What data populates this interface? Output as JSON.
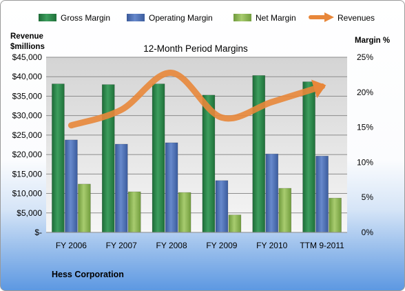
{
  "chart_data": {
    "type": "bar",
    "title": "12-Month Period Margins",
    "company": "Hess Corporation",
    "y_left_label_line1": "Revenue",
    "y_left_label_line2": "$millions",
    "y_right_label": "Margin %",
    "categories": [
      "FY 2006",
      "FY 2007",
      "FY 2008",
      "FY 2009",
      "FY 2010",
      "TTM 9-2011"
    ],
    "left_axis": {
      "min": 0,
      "max": 45000,
      "step": 5000,
      "tick_labels": [
        "$-",
        "$5,000",
        "$10,000",
        "$15,000",
        "$20,000",
        "$25,000",
        "$30,000",
        "$35,000",
        "$40,000",
        "$45,000"
      ]
    },
    "right_axis": {
      "min": 0,
      "max": 25,
      "step": 5,
      "tick_labels": [
        "0%",
        "5%",
        "10%",
        "15%",
        "20%",
        "25%"
      ]
    },
    "series": [
      {
        "name": "Gross Margin",
        "axis": "right",
        "color": "#2e8b4e",
        "values": [
          21.2,
          21.1,
          21.2,
          19.6,
          22.4,
          21.5
        ]
      },
      {
        "name": "Operating Margin",
        "axis": "right",
        "color": "#4d72b8",
        "values": [
          13.2,
          12.6,
          12.8,
          7.4,
          11.2,
          10.9
        ]
      },
      {
        "name": "Net Margin",
        "axis": "right",
        "color": "#8db354",
        "values": [
          6.9,
          5.8,
          5.7,
          2.5,
          6.3,
          4.9
        ]
      }
    ],
    "line_series": {
      "name": "Revenues",
      "axis": "left",
      "color": "#e8873a",
      "values": [
        27500,
        31500,
        41000,
        29500,
        33500,
        37500
      ]
    },
    "legend_position": "top",
    "grid": true
  }
}
